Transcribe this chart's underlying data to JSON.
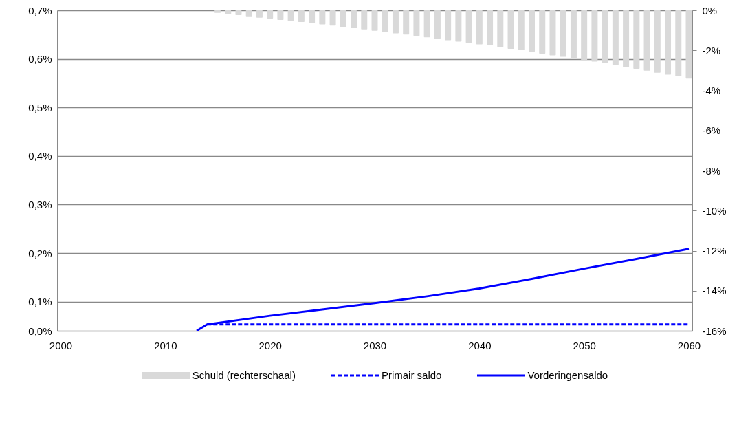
{
  "chart_data": {
    "type": "bar",
    "xlim": [
      2000,
      2060
    ],
    "xticks": [
      2000,
      2010,
      2020,
      2030,
      2040,
      2050,
      2060
    ],
    "ylim": [
      0.04,
      0.7
    ],
    "yticks": [
      {
        "value": 0.04,
        "label": "0,0%"
      },
      {
        "value": 0.1,
        "label": "0,1%"
      },
      {
        "value": 0.2,
        "label": "0,2%"
      },
      {
        "value": 0.3,
        "label": "0,3%"
      },
      {
        "value": 0.4,
        "label": "0,4%"
      },
      {
        "value": 0.5,
        "label": "0,5%"
      },
      {
        "value": 0.6,
        "label": "0,6%"
      },
      {
        "value": 0.7,
        "label": "0,7%"
      }
    ],
    "y2lim": [
      -16,
      0
    ],
    "y2ticks": [
      {
        "value": -16,
        "label": "-16%"
      },
      {
        "value": -14,
        "label": "-14%"
      },
      {
        "value": -12,
        "label": "-12%"
      },
      {
        "value": -10,
        "label": "-10%"
      },
      {
        "value": -8,
        "label": "-8%"
      },
      {
        "value": -6,
        "label": "-6%"
      },
      {
        "value": -4,
        "label": "-4%"
      },
      {
        "value": -2,
        "label": "-2%"
      },
      {
        "value": 0,
        "label": "0%"
      }
    ],
    "grid": "y",
    "legend": "bottom",
    "series": [
      {
        "name": "Schuld (rechterschaal)",
        "axis": "y2",
        "color": "#d9d9d9",
        "x": [
          2015,
          2016,
          2017,
          2018,
          2019,
          2020,
          2021,
          2022,
          2023,
          2024,
          2025,
          2026,
          2027,
          2028,
          2029,
          2030,
          2031,
          2032,
          2033,
          2034,
          2035,
          2036,
          2037,
          2038,
          2039,
          2040,
          2041,
          2042,
          2043,
          2044,
          2045,
          2046,
          2047,
          2048,
          2049,
          2050,
          2051,
          2052,
          2053,
          2054,
          2055,
          2056,
          2057,
          2058,
          2059,
          2060
        ],
        "values": [
          -0.13,
          -0.19,
          -0.24,
          -0.3,
          -0.37,
          -0.41,
          -0.48,
          -0.53,
          -0.58,
          -0.65,
          -0.7,
          -0.76,
          -0.82,
          -0.89,
          -0.95,
          -1.02,
          -1.08,
          -1.15,
          -1.21,
          -1.28,
          -1.35,
          -1.42,
          -1.49,
          -1.56,
          -1.62,
          -1.7,
          -1.75,
          -1.84,
          -1.92,
          -1.99,
          -2.07,
          -2.16,
          -2.25,
          -2.32,
          -2.4,
          -2.49,
          -2.56,
          -2.64,
          -2.73,
          -2.84,
          -2.92,
          -3.01,
          -3.12,
          -3.21,
          -3.3,
          -3.41
        ]
      },
      {
        "name": "Primair saldo",
        "type": "line",
        "line_style": "dashed",
        "color": "#0000ff",
        "x": [
          2014,
          2060
        ],
        "values": [
          0.053,
          0.053
        ]
      },
      {
        "name": "Vorderingensaldo",
        "type": "line",
        "line_style": "solid",
        "color": "#0000ff",
        "x": [
          2013,
          2014,
          2020,
          2025,
          2030,
          2035,
          2040,
          2045,
          2050,
          2055,
          2060
        ],
        "values": [
          0.04,
          0.053,
          0.071,
          0.084,
          0.097,
          0.111,
          0.127,
          0.147,
          0.168,
          0.188,
          0.209
        ]
      }
    ]
  }
}
